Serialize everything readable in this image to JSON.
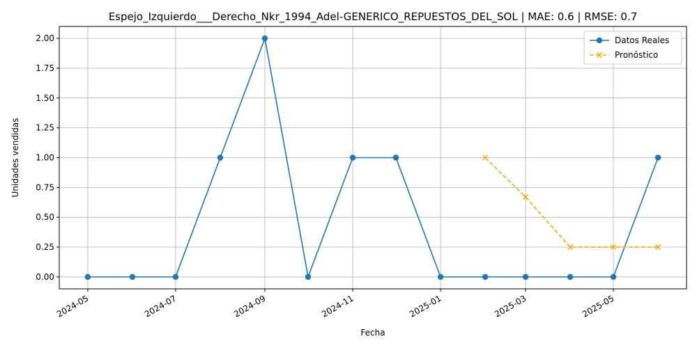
{
  "chart_data": {
    "type": "line",
    "title": "Espejo_Izquierdo___Derecho_Nkr_1994_Adel-GENERICO_REPUESTOS_DEL_SOL | MAE: 0.6 | RMSE: 0.7",
    "xlabel": "Fecha",
    "ylabel": "Unidades vendidas",
    "ylim": [
      -0.1,
      2.1
    ],
    "grid": true,
    "legend_position": "top-right",
    "x_ticks": [
      "2024-05",
      "2024-07",
      "2024-09",
      "2024-11",
      "2025-01",
      "2025-03",
      "2025-05"
    ],
    "y_ticks": [
      "0.00",
      "0.25",
      "0.50",
      "0.75",
      "1.00",
      "1.25",
      "1.50",
      "1.75",
      "2.00"
    ],
    "series": [
      {
        "name": "Datos Reales",
        "color": "#1f77b4",
        "style": "solid",
        "marker": "circle",
        "x": [
          "2024-05-01",
          "2024-06-01",
          "2024-07-01",
          "2024-08-01",
          "2024-09-01",
          "2024-10-01",
          "2024-11-01",
          "2024-12-01",
          "2025-01-01",
          "2025-02-01",
          "2025-03-01",
          "2025-04-01",
          "2025-05-01",
          "2025-06-01"
        ],
        "y": [
          0,
          0,
          0,
          1,
          2,
          0,
          1,
          1,
          0,
          0,
          0,
          0,
          0,
          1
        ]
      },
      {
        "name": "Pronóstico",
        "color": "#ffa500",
        "style": "dashed",
        "marker": "x",
        "x": [
          "2025-02-01",
          "2025-03-01",
          "2025-04-01",
          "2025-05-01",
          "2025-06-01"
        ],
        "y": [
          1.0,
          0.67,
          0.25,
          0.25,
          0.25
        ]
      }
    ]
  }
}
